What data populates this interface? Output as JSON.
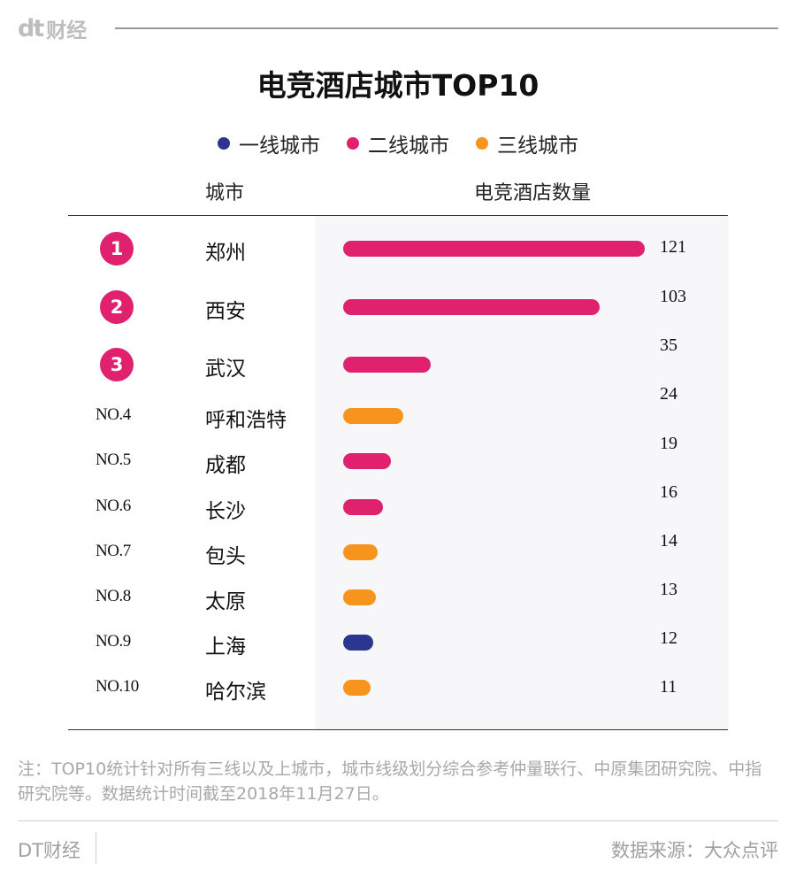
{
  "brand": {
    "logo_mark": "dt",
    "logo_text": "财经"
  },
  "chart_data": {
    "type": "bar",
    "orientation": "horizontal",
    "title": "电竞酒店城市TOP10",
    "column_headers": {
      "city": "城市",
      "count": "电竞酒店数量"
    },
    "legend": [
      {
        "name": "一线城市",
        "color": "#2b3690"
      },
      {
        "name": "二线城市",
        "color": "#e0226e"
      },
      {
        "name": "三线城市",
        "color": "#f7941d"
      }
    ],
    "categories": [
      "郑州",
      "西安",
      "武汉",
      "呼和浩特",
      "成都",
      "长沙",
      "包头",
      "太原",
      "上海",
      "哈尔滨"
    ],
    "ranks": [
      "1",
      "2",
      "3",
      "NO.4",
      "NO.5",
      "NO.6",
      "NO.7",
      "NO.8",
      "NO.9",
      "NO.10"
    ],
    "values": [
      121,
      103,
      35,
      24,
      19,
      16,
      14,
      13,
      12,
      11
    ],
    "tiers": [
      "二线城市",
      "二线城市",
      "二线城市",
      "三线城市",
      "二线城市",
      "二线城市",
      "三线城市",
      "三线城市",
      "一线城市",
      "三线城市"
    ],
    "xlim": [
      0,
      121
    ],
    "grid": false,
    "legend_position": "top-center"
  },
  "note": "注：TOP10统计针对所有三线以及上城市，城市线级划分综合参考仲量联行、中原集团研究院、中指研究院等。数据统计时间截至2018年11月27日。",
  "footer": {
    "brand": "DT财经",
    "source": "数据来源：大众点评"
  }
}
